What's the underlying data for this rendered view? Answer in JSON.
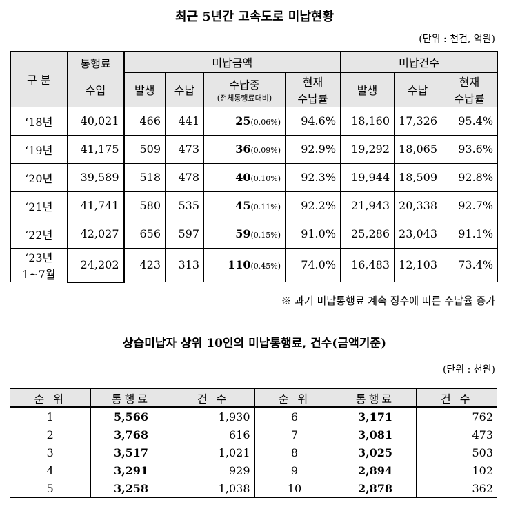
{
  "title1": "최근 5년간 고속도로 미납현황",
  "unit1": "(단위 : 천건, 억원)",
  "table1": {
    "header": {
      "category": "구 분",
      "toll_line1": "통행료",
      "toll_line2": "수입",
      "unpaid_amount": "미납금액",
      "unpaid_count": "미납건수",
      "occur": "발생",
      "paid": "수납",
      "unpaid_mid": "수납중",
      "unpaid_mid_sub": "(전체통행료대비)",
      "rate_line1": "현재",
      "rate_line2": "수납률",
      "occur2": "발생",
      "paid2": "수납",
      "rate2_line1": "현재",
      "rate2_line2": "수납률"
    },
    "rows": [
      {
        "year": "‘18년",
        "toll": "40,021",
        "occur": "466",
        "paid": "441",
        "mid": "25",
        "mid_pct": "(0.06%)",
        "rate": "94.6%",
        "c_occur": "18,160",
        "c_paid": "17,326",
        "c_rate": "95.4%"
      },
      {
        "year": "‘19년",
        "toll": "41,175",
        "occur": "509",
        "paid": "473",
        "mid": "36",
        "mid_pct": "(0.09%)",
        "rate": "92.9%",
        "c_occur": "19,292",
        "c_paid": "18,065",
        "c_rate": "93.6%"
      },
      {
        "year": "‘20년",
        "toll": "39,589",
        "occur": "518",
        "paid": "478",
        "mid": "40",
        "mid_pct": "(0.10%)",
        "rate": "92.3%",
        "c_occur": "19,944",
        "c_paid": "18,509",
        "c_rate": "92.8%"
      },
      {
        "year": "‘21년",
        "toll": "41,741",
        "occur": "580",
        "paid": "535",
        "mid": "45",
        "mid_pct": "(0.11%)",
        "rate": "92.2%",
        "c_occur": "21,943",
        "c_paid": "20,338",
        "c_rate": "92.7%"
      },
      {
        "year": "‘22년",
        "toll": "42,027",
        "occur": "656",
        "paid": "597",
        "mid": "59",
        "mid_pct": "(0.15%)",
        "rate": "91.0%",
        "c_occur": "25,286",
        "c_paid": "23,043",
        "c_rate": "91.1%"
      },
      {
        "year_line1": "‘23년",
        "year_line2": "1~7월",
        "toll": "24,202",
        "occur": "423",
        "paid": "313",
        "mid": "110",
        "mid_pct": "(0.45%)",
        "rate": "74.0%",
        "c_occur": "16,483",
        "c_paid": "12,103",
        "c_rate": "73.4%"
      }
    ]
  },
  "note1": "※ 과거 미납통행료 계속 징수에 따른 수납율 증가",
  "title2": "상습미납자 상위 10인의 미납통행료, 건수(금액기준)",
  "unit2": "(단위 : 천원)",
  "table2": {
    "headers": [
      "순 위",
      "통행료",
      "건 수",
      "순 위",
      "통행료",
      "건 수"
    ],
    "rows": [
      {
        "rank_a": "1",
        "toll_a": "5,566",
        "count_a": "1,930",
        "rank_b": "6",
        "toll_b": "3,171",
        "count_b": "762"
      },
      {
        "rank_a": "2",
        "toll_a": "3,768",
        "count_a": "616",
        "rank_b": "7",
        "toll_b": "3,081",
        "count_b": "473"
      },
      {
        "rank_a": "3",
        "toll_a": "3,517",
        "count_a": "1,021",
        "rank_b": "8",
        "toll_b": "3,025",
        "count_b": "503"
      },
      {
        "rank_a": "4",
        "toll_a": "3,291",
        "count_a": "929",
        "rank_b": "9",
        "toll_b": "2,894",
        "count_b": "102"
      },
      {
        "rank_a": "5",
        "toll_a": "3,258",
        "count_a": "1,038",
        "rank_b": "10",
        "toll_b": "2,878",
        "count_b": "362"
      }
    ]
  }
}
